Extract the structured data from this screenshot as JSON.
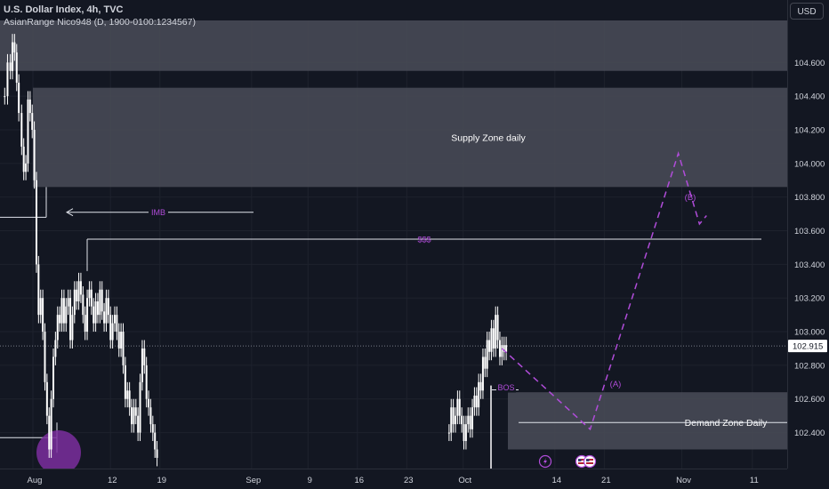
{
  "header": {
    "title": "U.S. Dollar Index, 4h, TVC",
    "indicator": "AsianRange Nico948 (D, 1900-0100:1234567)",
    "currency": "USD"
  },
  "chart_data": {
    "type": "candlestick",
    "title": "U.S. Dollar Index, 4h, TVC",
    "ylim": [
      102.18,
      104.92
    ],
    "y_ticks": [
      104.6,
      104.4,
      104.2,
      104.0,
      103.8,
      103.6,
      103.4,
      103.2,
      103.0,
      102.8,
      102.6,
      102.4
    ],
    "y_tick_labels": [
      "104.600",
      "104.400",
      "104.200",
      "104.000",
      "103.800",
      "103.600",
      "103.400",
      "103.200",
      "103.000",
      "102.800",
      "102.600",
      "102.400"
    ],
    "x_ticks": [
      {
        "label": "Aug",
        "day": 0
      },
      {
        "label": "12",
        "day": 11
      },
      {
        "label": "19",
        "day": 18
      },
      {
        "label": "Sep",
        "day": 31
      },
      {
        "label": "9",
        "day": 39
      },
      {
        "label": "16",
        "day": 46
      },
      {
        "label": "23",
        "day": 53
      },
      {
        "label": "Oct",
        "day": 61
      },
      {
        "label": "14",
        "day": 74
      },
      {
        "label": "21",
        "day": 81
      },
      {
        "label": "Nov",
        "day": 92
      },
      {
        "label": "11",
        "day": 102
      }
    ],
    "current_price": "102.915",
    "price_series": [
      {
        "day": -4.0,
        "value": 104.4
      },
      {
        "day": -3.6,
        "value": 104.6
      },
      {
        "day": -3.2,
        "value": 104.55
      },
      {
        "day": -2.9,
        "value": 104.72
      },
      {
        "day": -2.6,
        "value": 104.66
      },
      {
        "day": -2.3,
        "value": 104.48
      },
      {
        "day": -2.0,
        "value": 104.3
      },
      {
        "day": -1.6,
        "value": 104.1
      },
      {
        "day": -1.3,
        "value": 103.95
      },
      {
        "day": -1.0,
        "value": 104.0
      },
      {
        "day": -0.7,
        "value": 104.38
      },
      {
        "day": -0.4,
        "value": 104.3
      },
      {
        "day": -0.1,
        "value": 104.2
      },
      {
        "day": 0.2,
        "value": 103.9
      },
      {
        "day": 0.5,
        "value": 103.4
      },
      {
        "day": 0.8,
        "value": 103.1
      },
      {
        "day": 1.1,
        "value": 103.2
      },
      {
        "day": 1.4,
        "value": 103.0
      },
      {
        "day": 1.7,
        "value": 102.7
      },
      {
        "day": 2.0,
        "value": 102.5
      },
      {
        "day": 2.3,
        "value": 102.3
      },
      {
        "day": 2.6,
        "value": 102.6
      },
      {
        "day": 2.9,
        "value": 102.85
      },
      {
        "day": 3.2,
        "value": 102.95
      },
      {
        "day": 3.5,
        "value": 103.1
      },
      {
        "day": 3.8,
        "value": 103.05
      },
      {
        "day": 4.1,
        "value": 103.2
      },
      {
        "day": 4.4,
        "value": 103.05
      },
      {
        "day": 4.7,
        "value": 103.15
      },
      {
        "day": 5.0,
        "value": 103.2
      },
      {
        "day": 5.3,
        "value": 102.95
      },
      {
        "day": 5.6,
        "value": 103.1
      },
      {
        "day": 5.9,
        "value": 103.25
      },
      {
        "day": 6.2,
        "value": 103.18
      },
      {
        "day": 6.5,
        "value": 103.3
      },
      {
        "day": 6.8,
        "value": 103.22
      },
      {
        "day": 7.1,
        "value": 103.1
      },
      {
        "day": 7.4,
        "value": 103.0
      },
      {
        "day": 7.7,
        "value": 103.2
      },
      {
        "day": 8.0,
        "value": 103.25
      },
      {
        "day": 8.3,
        "value": 103.15
      },
      {
        "day": 8.6,
        "value": 103.05
      },
      {
        "day": 8.9,
        "value": 103.18
      },
      {
        "day": 9.2,
        "value": 103.1
      },
      {
        "day": 9.5,
        "value": 103.25
      },
      {
        "day": 9.8,
        "value": 103.12
      },
      {
        "day": 10.1,
        "value": 103.05
      },
      {
        "day": 10.4,
        "value": 103.2
      },
      {
        "day": 10.7,
        "value": 103.1
      },
      {
        "day": 11.0,
        "value": 102.95
      },
      {
        "day": 11.3,
        "value": 103.05
      },
      {
        "day": 11.6,
        "value": 103.1
      },
      {
        "day": 11.9,
        "value": 103.0
      },
      {
        "day": 12.2,
        "value": 102.9
      },
      {
        "day": 12.5,
        "value": 103.0
      },
      {
        "day": 12.8,
        "value": 102.8
      },
      {
        "day": 13.1,
        "value": 102.6
      },
      {
        "day": 13.4,
        "value": 102.65
      },
      {
        "day": 13.7,
        "value": 102.55
      },
      {
        "day": 14.0,
        "value": 102.45
      },
      {
        "day": 14.3,
        "value": 102.55
      },
      {
        "day": 14.6,
        "value": 102.5
      },
      {
        "day": 14.9,
        "value": 102.4
      },
      {
        "day": 15.2,
        "value": 102.7
      },
      {
        "day": 15.5,
        "value": 102.9
      },
      {
        "day": 15.8,
        "value": 102.8
      },
      {
        "day": 16.1,
        "value": 102.6
      },
      {
        "day": 16.4,
        "value": 102.55
      },
      {
        "day": 16.7,
        "value": 102.45
      },
      {
        "day": 17.0,
        "value": 102.4
      },
      {
        "day": 17.3,
        "value": 102.3
      },
      {
        "day": 17.6,
        "value": 102.25
      },
      {
        "day": 59.0,
        "value": 102.4
      },
      {
        "day": 59.3,
        "value": 102.55
      },
      {
        "day": 59.6,
        "value": 102.45
      },
      {
        "day": 59.9,
        "value": 102.5
      },
      {
        "day": 60.2,
        "value": 102.6
      },
      {
        "day": 60.5,
        "value": 102.5
      },
      {
        "day": 60.8,
        "value": 102.45
      },
      {
        "day": 61.1,
        "value": 102.35
      },
      {
        "day": 61.4,
        "value": 102.45
      },
      {
        "day": 61.7,
        "value": 102.5
      },
      {
        "day": 62.0,
        "value": 102.42
      },
      {
        "day": 62.3,
        "value": 102.55
      },
      {
        "day": 62.6,
        "value": 102.62
      },
      {
        "day": 62.9,
        "value": 102.55
      },
      {
        "day": 63.2,
        "value": 102.7
      },
      {
        "day": 63.5,
        "value": 102.65
      },
      {
        "day": 63.8,
        "value": 102.85
      },
      {
        "day": 64.1,
        "value": 102.78
      },
      {
        "day": 64.4,
        "value": 102.95
      },
      {
        "day": 64.7,
        "value": 102.88
      },
      {
        "day": 65.0,
        "value": 103.02
      },
      {
        "day": 65.3,
        "value": 102.9
      },
      {
        "day": 65.6,
        "value": 103.1
      },
      {
        "day": 65.9,
        "value": 102.95
      },
      {
        "day": 66.2,
        "value": 102.85
      },
      {
        "day": 66.5,
        "value": 102.92
      },
      {
        "day": 66.8,
        "value": 102.88
      },
      {
        "day": 67.1,
        "value": 102.92
      }
    ],
    "zones": [
      {
        "label": "",
        "from": 104.55,
        "to": 104.85
      },
      {
        "label": "Supply Zone daily",
        "from": 103.86,
        "to": 104.45
      },
      {
        "label": "Demand Zone Daily",
        "from": 102.3,
        "to": 102.64
      }
    ],
    "levels": [
      {
        "label": "$$$",
        "value": 103.55
      },
      {
        "label": "",
        "value": 103.68
      },
      {
        "label": "",
        "value": 102.37
      },
      {
        "label": "",
        "value": 102.46
      }
    ],
    "annotations": [
      {
        "label": "IMB",
        "value": 103.71
      },
      {
        "label": "BOS",
        "value": 102.67
      },
      {
        "label": "(A)",
        "value": 102.69
      },
      {
        "label": "(B)",
        "value": 103.8
      }
    ],
    "projection": [
      {
        "day": 66.5,
        "value": 102.9
      },
      {
        "day": 79.0,
        "value": 102.42
      },
      {
        "day": 91.5,
        "value": 104.06
      },
      {
        "day": 94.5,
        "value": 103.64
      },
      {
        "day": 95.5,
        "value": 103.69
      }
    ],
    "markers": [
      "lightning-icon",
      "flag-icon",
      "flag-icon"
    ],
    "colors": {
      "background": "#131722",
      "candle": "#ffffff",
      "zone": "#4a4c58",
      "projection": "#b04cd9",
      "grid": "#1e222d",
      "text": "#d1d4dc"
    }
  }
}
